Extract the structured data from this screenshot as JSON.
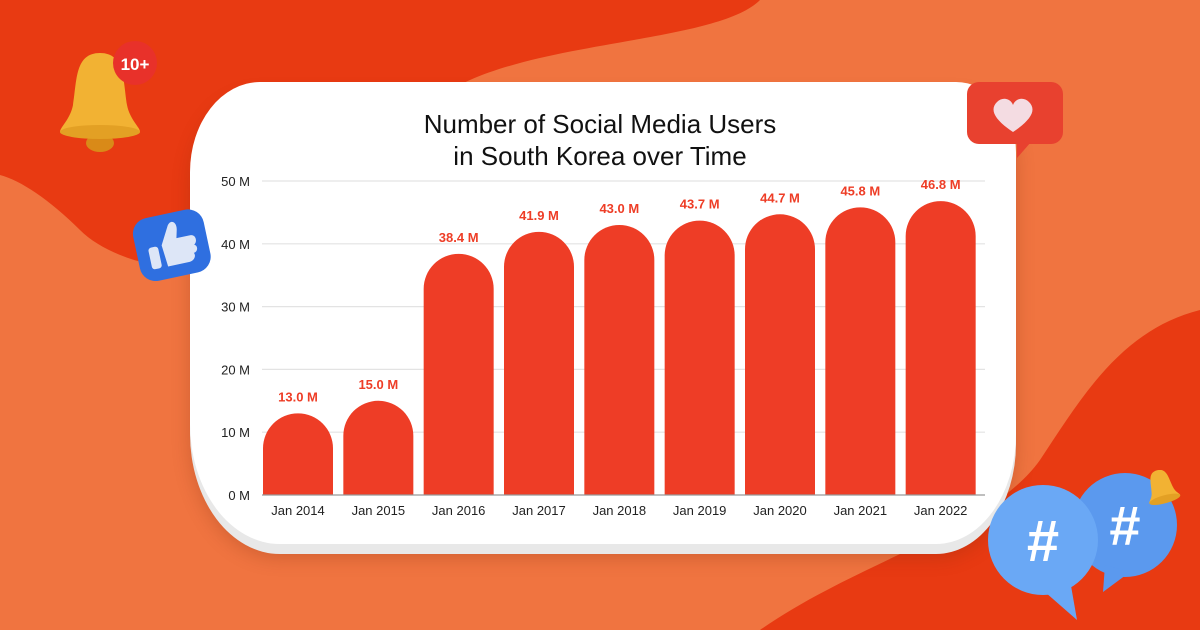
{
  "chart_data": {
    "type": "bar",
    "title": [
      "Number of Social Media Users",
      "in South Korea over Time"
    ],
    "xlabel": "",
    "ylabel": "",
    "categories": [
      "Jan 2014",
      "Jan 2015",
      "Jan 2016",
      "Jan 2017",
      "Jan 2018",
      "Jan 2019",
      "Jan 2020",
      "Jan 2021",
      "Jan 2022"
    ],
    "values": [
      13.0,
      15.0,
      38.4,
      41.9,
      43.0,
      43.7,
      44.7,
      45.8,
      46.8
    ],
    "value_labels": [
      "13.0 M",
      "15.0 M",
      "38.4 M",
      "41.9 M",
      "43.0 M",
      "43.7 M",
      "44.7 M",
      "45.8 M",
      "46.8 M"
    ],
    "unit": "M",
    "ylim": [
      0,
      50
    ],
    "yticks": [
      0,
      10,
      20,
      30,
      40,
      50
    ],
    "ytick_labels": [
      "0 M",
      "10 M",
      "20 M",
      "30 M",
      "40 M",
      "50 M"
    ],
    "grid": true,
    "legend": "none",
    "colors": {
      "bar": "#ee3d26",
      "label": "#ee3d26",
      "grid": "#e3e3e3",
      "axis": "#999999",
      "text": "#222222"
    }
  },
  "decorations": {
    "bell_badge": "10+",
    "icons": [
      "bell-icon",
      "thumbs-up-icon",
      "heart-icon",
      "hashtag-icon",
      "hashtag-icon",
      "small-bell-icon"
    ]
  },
  "colors": {
    "background": "#f07440",
    "background_dark": "#e83a12"
  }
}
